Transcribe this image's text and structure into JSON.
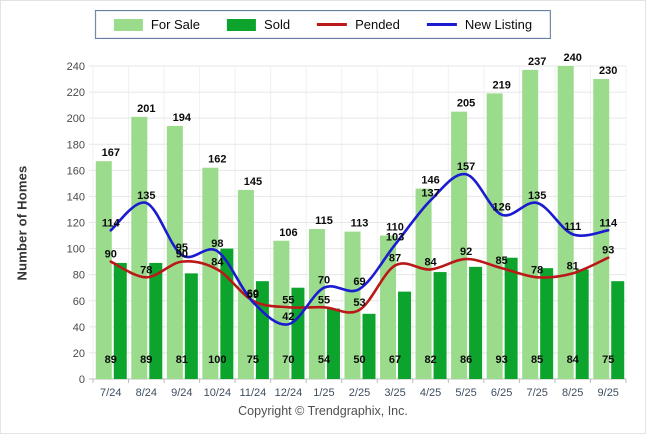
{
  "legend": {
    "items": [
      {
        "label": "For Sale",
        "swatch": "box",
        "color": "#9BDB8C"
      },
      {
        "label": "Sold",
        "swatch": "box",
        "color": "#0CA42C"
      },
      {
        "label": "Pended",
        "swatch": "line",
        "color": "#BB1919"
      },
      {
        "label": "New Listing",
        "swatch": "line",
        "color": "#1B1BD0"
      }
    ]
  },
  "y_axis": {
    "title": "Number of Homes",
    "min": 0,
    "max": 240,
    "step": 20
  },
  "footer": {
    "copyright": "Copyright © Trendgraphix, Inc."
  },
  "chart_data": {
    "type": "bar+line",
    "title": "",
    "xlabel": "",
    "ylabel": "Number of Homes",
    "ylim": [
      0,
      240
    ],
    "ytick_step": 20,
    "grid": true,
    "legend_position": "top",
    "categories": [
      "7/24",
      "8/24",
      "9/24",
      "10/24",
      "11/24",
      "12/24",
      "1/25",
      "2/25",
      "3/25",
      "4/25",
      "5/25",
      "6/25",
      "7/25",
      "8/25",
      "9/25"
    ],
    "series": [
      {
        "name": "For Sale",
        "type": "bar",
        "color": "#9BDB8C",
        "values": [
          167,
          201,
          194,
          162,
          145,
          106,
          115,
          113,
          110,
          146,
          205,
          219,
          237,
          240,
          230
        ]
      },
      {
        "name": "Sold",
        "type": "bar",
        "color": "#0CA42C",
        "values": [
          89,
          89,
          81,
          100,
          75,
          70,
          54,
          50,
          67,
          82,
          86,
          93,
          85,
          84,
          75
        ]
      },
      {
        "name": "Pended",
        "type": "line",
        "color": "#BB1919",
        "values": [
          90,
          78,
          90,
          84,
          60,
          55,
          55,
          53,
          87,
          84,
          92,
          85,
          78,
          81,
          93
        ]
      },
      {
        "name": "New Listing",
        "type": "line",
        "color": "#1B1BD0",
        "values": [
          114,
          135,
          95,
          98,
          59,
          42,
          70,
          69,
          103,
          137,
          157,
          126,
          135,
          111,
          114
        ]
      }
    ]
  }
}
